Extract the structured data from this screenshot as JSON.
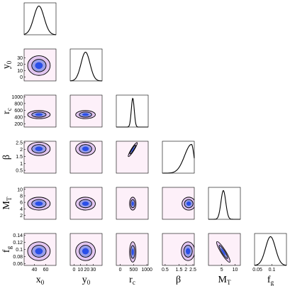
{
  "chart_data": {
    "type": "corner",
    "colors": {
      "background_cell": "#fdf0f9",
      "outer_contour": "#e2c6f0",
      "mid_contour": "#9a9fe8",
      "core": "#2a4fe8",
      "line": "#000000"
    },
    "parameters": [
      {
        "key": "x0",
        "base": "x",
        "sub": "0",
        "ticks": [
          40,
          60
        ],
        "tick_labels": [
          "40",
          "60"
        ],
        "range": [
          22,
          78
        ],
        "marginal": {
          "type": "gaussian",
          "mu": 48,
          "sigma": 9
        }
      },
      {
        "key": "y0",
        "base": "y",
        "sub": "0",
        "ticks": [
          0,
          10,
          20,
          30
        ],
        "tick_labels": [
          "0",
          "10",
          "20",
          "30"
        ],
        "range": [
          -6,
          44
        ],
        "marginal": {
          "type": "gaussian",
          "mu": 18,
          "sigma": 7
        }
      },
      {
        "key": "rc",
        "base": "r",
        "sub": "c",
        "ticks": [
          0,
          500,
          1000
        ],
        "tick_labels": [
          "0",
          "500",
          "1000"
        ],
        "range": [
          -150,
          1050
        ],
        "marginal": {
          "type": "gaussian",
          "mu": 470,
          "sigma": 55
        }
      },
      {
        "key": "beta",
        "base": "β",
        "sub": "",
        "ticks": [
          0.5,
          1.5,
          2,
          2.5
        ],
        "tick_labels": [
          "0.5",
          "1.5",
          "2",
          "2.5"
        ],
        "range": [
          0.3,
          2.6
        ],
        "marginal": {
          "type": "rising",
          "peak": 2.4,
          "sigma": 0.5
        }
      },
      {
        "key": "MT",
        "base": "M",
        "sub": "T",
        "ticks": [
          5,
          10
        ],
        "tick_labels": [
          "5",
          "10"
        ],
        "range": [
          0,
          12
        ],
        "marginal": {
          "type": "gaussian",
          "mu": 5.6,
          "sigma": 0.9
        }
      },
      {
        "key": "fg",
        "base": "f",
        "sub": "g",
        "ticks": [
          0.05,
          0.1
        ],
        "tick_labels": [
          "0.05",
          "0.1"
        ],
        "range": [
          0.04,
          0.15
        ],
        "marginal": {
          "type": "gaussian",
          "mu": 0.095,
          "sigma": 0.017
        }
      }
    ],
    "y_ticks": {
      "y0": {
        "ticks": [
          0,
          10,
          20,
          30
        ],
        "range": [
          -6,
          44
        ]
      },
      "rc": {
        "ticks": [
          200,
          400,
          600,
          800,
          1000
        ],
        "range": [
          100,
          1050
        ]
      },
      "beta": {
        "ticks": [
          0.5,
          1,
          1.5,
          2,
          2.5
        ],
        "range": [
          0.3,
          2.6
        ]
      },
      "MT": {
        "ticks": [
          2,
          4,
          6,
          8,
          10
        ],
        "range": [
          0.8,
          10.6
        ]
      },
      "fg": {
        "ticks": [
          0.06,
          0.08,
          0.1,
          0.12,
          0.14
        ],
        "range": [
          0.055,
          0.145
        ]
      }
    },
    "joint": [
      {
        "row": 1,
        "col": 0,
        "cx": 48,
        "cy": 18,
        "sx": 9,
        "sy": 7,
        "rho": 0
      },
      {
        "row": 2,
        "col": 0,
        "cx": 48,
        "cy": 470,
        "sx": 9,
        "sy": 55,
        "rho": 0
      },
      {
        "row": 2,
        "col": 1,
        "cx": 18,
        "cy": 470,
        "sx": 7,
        "sy": 55,
        "rho": 0
      },
      {
        "row": 3,
        "col": 0,
        "cx": 48,
        "cy": 2.05,
        "sx": 9,
        "sy": 0.22,
        "rho": 0
      },
      {
        "row": 3,
        "col": 1,
        "cx": 18,
        "cy": 2.05,
        "sx": 7,
        "sy": 0.22,
        "rho": 0
      },
      {
        "row": 3,
        "col": 2,
        "cx": 470,
        "cy": 2.0,
        "sx": 55,
        "sy": 0.25,
        "rho": 0.9
      },
      {
        "row": 4,
        "col": 0,
        "cx": 48,
        "cy": 5.6,
        "sx": 9,
        "sy": 0.9,
        "rho": 0
      },
      {
        "row": 4,
        "col": 1,
        "cx": 18,
        "cy": 5.6,
        "sx": 7,
        "sy": 0.9,
        "rho": 0
      },
      {
        "row": 4,
        "col": 2,
        "cx": 470,
        "cy": 5.6,
        "sx": 55,
        "sy": 0.9,
        "rho": 0
      },
      {
        "row": 4,
        "col": 3,
        "cx": 2.2,
        "cy": 5.6,
        "sx": 0.22,
        "sy": 0.9,
        "rho": 0
      },
      {
        "row": 5,
        "col": 0,
        "cx": 48,
        "cy": 0.095,
        "sx": 9,
        "sy": 0.012,
        "rho": 0
      },
      {
        "row": 5,
        "col": 1,
        "cx": 18,
        "cy": 0.095,
        "sx": 7,
        "sy": 0.012,
        "rho": 0
      },
      {
        "row": 5,
        "col": 2,
        "cx": 470,
        "cy": 0.093,
        "sx": 55,
        "sy": 0.013,
        "rho": 0
      },
      {
        "row": 5,
        "col": 3,
        "cx": 2.15,
        "cy": 0.095,
        "sx": 0.22,
        "sy": 0.012,
        "rho": 0
      },
      {
        "row": 5,
        "col": 4,
        "cx": 5.6,
        "cy": 0.093,
        "sx": 0.9,
        "sy": 0.014,
        "rho": -0.85
      }
    ]
  }
}
